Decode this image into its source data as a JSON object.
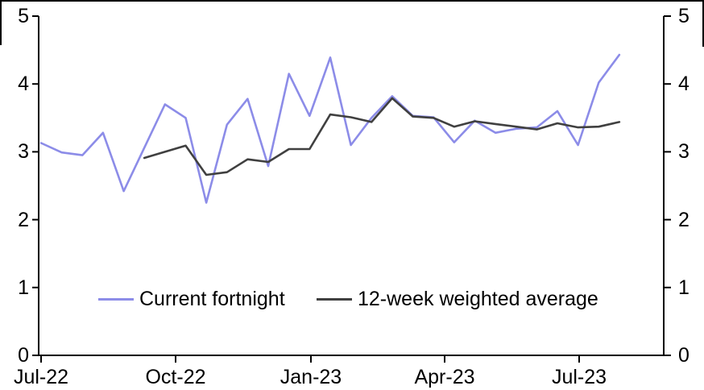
{
  "chart_data": {
    "type": "line",
    "title": "",
    "xlabel": "",
    "ylabel": "",
    "ylim": [
      0,
      5
    ],
    "y_ticks": [
      0,
      1,
      2,
      3,
      4,
      5
    ],
    "x_tick_labels": [
      "Jul-22",
      "Oct-22",
      "Jan-23",
      "Apr-23",
      "Jul-23"
    ],
    "x_frequency": "fortnightly",
    "grid": false,
    "dual_axis": true,
    "legend_position": "inside-bottom",
    "series": [
      {
        "name": "Current fortnight",
        "color": "#8c8ce8",
        "values": [
          3.13,
          2.99,
          2.95,
          3.28,
          2.42,
          3.06,
          3.7,
          3.5,
          2.25,
          3.4,
          3.78,
          2.79,
          4.15,
          3.53,
          4.39,
          3.1,
          3.5,
          3.82,
          3.53,
          3.51,
          3.14,
          3.46,
          3.28,
          3.34,
          3.36,
          3.6,
          3.1,
          4.02,
          4.43
        ]
      },
      {
        "name": "12-week weighted average",
        "color": "#404040",
        "values": [
          null,
          null,
          null,
          null,
          null,
          2.91,
          3.0,
          3.09,
          2.66,
          2.7,
          2.89,
          2.85,
          3.04,
          3.04,
          3.55,
          3.51,
          3.44,
          3.79,
          3.52,
          3.5,
          3.37,
          3.45,
          3.41,
          3.37,
          3.33,
          3.42,
          3.36,
          3.37,
          3.44
        ]
      }
    ]
  },
  "axis_colors": {
    "axis": "#000000",
    "label": "#000000"
  }
}
